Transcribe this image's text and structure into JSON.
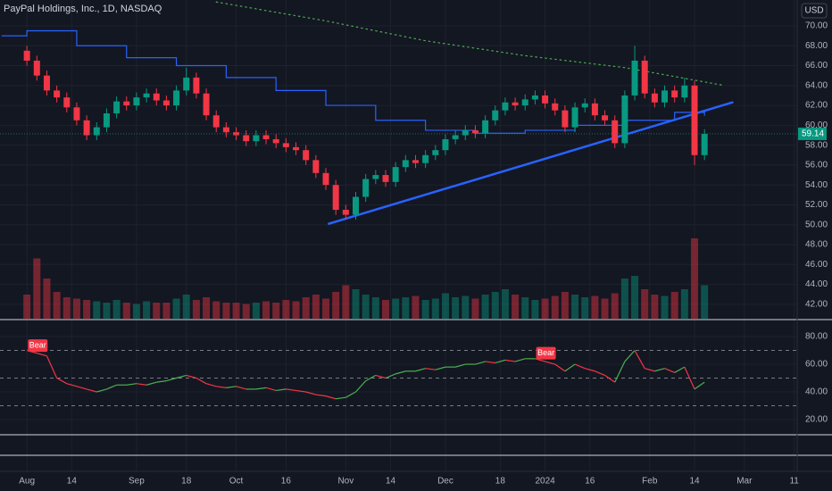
{
  "chart_data": {
    "type": "candlestick",
    "title": "PayPal Holdings, Inc., 1D, NASDAQ",
    "currency": "USD",
    "up_color": "#089981",
    "down_color": "#f23645",
    "grid": true,
    "x": [
      0,
      2,
      4,
      6,
      8,
      10,
      12,
      14,
      16,
      18,
      20,
      22,
      24,
      26,
      28,
      30,
      32,
      34,
      36,
      38,
      40,
      42,
      44,
      46,
      48,
      50,
      52,
      54,
      56,
      58,
      60,
      62,
      64,
      66,
      68,
      70,
      72,
      74,
      76,
      78,
      80,
      82,
      84,
      86,
      88,
      90,
      92,
      94,
      96,
      98,
      100,
      102,
      104,
      106,
      108,
      110,
      112,
      114,
      116,
      118,
      120,
      122,
      124,
      126,
      128,
      130,
      132,
      134,
      136
    ],
    "open": [
      67.5,
      66.5,
      65.0,
      63.5,
      62.8,
      61.8,
      60.5,
      59.0,
      59.8,
      61.2,
      62.4,
      62.0,
      62.8,
      63.2,
      62.5,
      62.0,
      63.5,
      64.8,
      63.2,
      61.0,
      59.8,
      59.3,
      59.0,
      58.4,
      59.0,
      58.6,
      58.2,
      57.8,
      57.5,
      56.5,
      55.2,
      54.0,
      51.5,
      51.0,
      52.8,
      54.6,
      55.0,
      54.3,
      55.8,
      56.5,
      56.2,
      57.0,
      57.5,
      58.6,
      59.0,
      59.5,
      59.2,
      60.5,
      61.5,
      62.3,
      62.0,
      62.6,
      63.0,
      62.2,
      61.5,
      59.8,
      61.8,
      62.2,
      61.0,
      60.5,
      58.2,
      63.0,
      66.5,
      63.2,
      62.3,
      63.5,
      62.8,
      64.0,
      57.0
    ],
    "high": [
      68.0,
      67.0,
      65.5,
      64.0,
      63.3,
      62.3,
      61.0,
      60.3,
      61.7,
      62.9,
      62.9,
      63.3,
      63.7,
      63.7,
      63.0,
      64.0,
      65.8,
      65.3,
      63.7,
      61.5,
      60.3,
      59.8,
      59.5,
      59.5,
      59.5,
      59.1,
      58.7,
      58.3,
      58.0,
      57.0,
      55.7,
      54.5,
      52.0,
      53.3,
      55.1,
      55.5,
      55.5,
      56.3,
      57.0,
      57.0,
      57.5,
      58.0,
      59.1,
      59.5,
      60.0,
      60.0,
      61.0,
      62.0,
      62.8,
      62.8,
      63.1,
      63.5,
      63.5,
      62.7,
      62.0,
      62.3,
      62.7,
      62.7,
      61.5,
      61.0,
      63.5,
      68.0,
      67.0,
      63.7,
      64.0,
      64.0,
      64.8,
      64.5,
      59.6
    ],
    "low": [
      66.0,
      64.5,
      63.0,
      62.3,
      61.3,
      60.0,
      58.5,
      58.5,
      59.3,
      60.7,
      61.5,
      61.5,
      62.3,
      62.0,
      61.5,
      61.5,
      63.0,
      62.7,
      60.5,
      59.3,
      58.8,
      58.5,
      57.9,
      57.9,
      58.1,
      57.7,
      57.3,
      57.0,
      56.0,
      54.7,
      53.5,
      51.0,
      50.5,
      50.5,
      52.3,
      54.1,
      53.8,
      53.8,
      55.3,
      55.7,
      55.7,
      56.5,
      57.0,
      58.1,
      58.5,
      58.7,
      58.7,
      60.0,
      61.0,
      61.5,
      61.5,
      62.1,
      61.7,
      61.0,
      59.3,
      59.3,
      61.3,
      60.5,
      60.0,
      57.7,
      57.7,
      62.5,
      62.7,
      61.8,
      61.8,
      62.3,
      62.3,
      56.0,
      56.5
    ],
    "close": [
      66.5,
      65.0,
      63.5,
      62.8,
      61.8,
      60.5,
      59.0,
      59.8,
      61.2,
      62.4,
      62.0,
      62.8,
      63.2,
      62.5,
      62.0,
      63.5,
      64.8,
      63.2,
      61.0,
      59.8,
      59.3,
      59.0,
      58.4,
      59.0,
      58.6,
      58.2,
      57.8,
      57.5,
      56.5,
      55.2,
      54.0,
      51.5,
      51.0,
      52.8,
      54.6,
      55.0,
      54.3,
      55.8,
      56.5,
      56.2,
      57.0,
      57.5,
      58.6,
      59.0,
      59.5,
      59.2,
      60.5,
      61.5,
      62.3,
      62.0,
      62.6,
      63.0,
      62.2,
      61.5,
      59.8,
      61.8,
      62.2,
      61.0,
      60.5,
      58.2,
      63.0,
      66.5,
      63.2,
      62.3,
      63.5,
      62.8,
      64.0,
      57.0,
      59.14
    ],
    "volume": [
      18,
      45,
      30,
      20,
      16,
      15,
      14,
      13,
      12,
      14,
      12,
      11,
      13,
      12,
      12,
      15,
      18,
      14,
      16,
      13,
      12,
      12,
      11,
      12,
      13,
      12,
      14,
      13,
      16,
      18,
      15,
      20,
      25,
      22,
      18,
      16,
      14,
      15,
      16,
      17,
      14,
      15,
      19,
      16,
      17,
      15,
      18,
      20,
      22,
      18,
      16,
      14,
      15,
      17,
      20,
      18,
      16,
      17,
      15,
      19,
      30,
      32,
      22,
      18,
      17,
      20,
      22,
      60,
      25
    ],
    "xlim": [
      -5.4,
      154.6
    ],
    "ylim": [
      40.55,
      72.6
    ],
    "yticks": [
      {
        "value": 42,
        "label": "42.00"
      },
      {
        "value": 44,
        "label": "44.00"
      },
      {
        "value": 46,
        "label": "46.00"
      },
      {
        "value": 48,
        "label": "48.00"
      },
      {
        "value": 50,
        "label": "50.00"
      },
      {
        "value": 52,
        "label": "52.00"
      },
      {
        "value": 54,
        "label": "54.00"
      },
      {
        "value": 56,
        "label": "56.00"
      },
      {
        "value": 58,
        "label": "58.00"
      },
      {
        "value": 60,
        "label": "60.00"
      },
      {
        "value": 62,
        "label": "62.00"
      },
      {
        "value": 64,
        "label": "64.00"
      },
      {
        "value": 66,
        "label": "66.00"
      },
      {
        "value": 68,
        "label": "68.00"
      },
      {
        "value": 70,
        "label": "70.00"
      }
    ],
    "xticks": [
      {
        "value": 0,
        "label": "Aug"
      },
      {
        "value": 9,
        "label": "14"
      },
      {
        "value": 22,
        "label": "Sep"
      },
      {
        "value": 32,
        "label": "18"
      },
      {
        "value": 42,
        "label": "Oct"
      },
      {
        "value": 52,
        "label": "16"
      },
      {
        "value": 64,
        "label": "Nov"
      },
      {
        "value": 73,
        "label": "14"
      },
      {
        "value": 84,
        "label": "Dec"
      },
      {
        "value": 95,
        "label": "18"
      },
      {
        "value": 104,
        "label": "2024"
      },
      {
        "value": 113,
        "label": "16"
      },
      {
        "value": 125,
        "label": "Feb"
      },
      {
        "value": 134,
        "label": "14"
      },
      {
        "value": 144,
        "label": "Mar"
      },
      {
        "value": 154,
        "label": "11"
      }
    ],
    "lines": [
      {
        "color": "#2962ff",
        "style": "step",
        "x": [
          -5,
          0,
          10,
          20,
          30,
          40,
          50,
          60,
          70,
          80,
          90,
          100,
          110,
          120,
          130,
          136
        ],
        "values": [
          69,
          69.5,
          68,
          66.8,
          66,
          64.8,
          63.5,
          62,
          60.5,
          59.5,
          59.2,
          59.5,
          60,
          60.5,
          61.3,
          61
        ]
      },
      {
        "color": "#4caf50",
        "style": "dotted",
        "x": [
          38,
          60,
          80,
          100,
          120,
          140
        ],
        "values": [
          72.4,
          70.5,
          68.5,
          67,
          65.8,
          64.0
        ]
      },
      {
        "color": "#2962ff",
        "style": "trend",
        "x": [
          60.6,
          141.6
        ],
        "values": [
          50.1,
          62.3
        ]
      }
    ],
    "oscillator": {
      "values": [
        70,
        68,
        66,
        50,
        46,
        44,
        42,
        40,
        42,
        45,
        45,
        46,
        45,
        47,
        48,
        50,
        52,
        50,
        46,
        44,
        43,
        44,
        42,
        42,
        43,
        41,
        42,
        41,
        40,
        38,
        37,
        35,
        36,
        40,
        48,
        52,
        50,
        53,
        55,
        55,
        57,
        56,
        58,
        58,
        60,
        60,
        62,
        61,
        63,
        62,
        64,
        64,
        62,
        60,
        55,
        60,
        57,
        55,
        52,
        47,
        62,
        70,
        57,
        55,
        57,
        54,
        58,
        42,
        47
      ],
      "ylim": [
        9.0,
        92.3
      ],
      "yticks": [
        {
          "value": 20,
          "label": "20.00"
        },
        {
          "value": 40,
          "label": "40.00"
        },
        {
          "value": 60,
          "label": "60.00"
        },
        {
          "value": 80,
          "label": "80.00"
        }
      ],
      "levels": [
        70,
        50,
        30
      ],
      "annotations": [
        {
          "text": "Bear",
          "x": 2,
          "value": 73.5
        },
        {
          "text": "Bear",
          "x": 104,
          "value": 68
        }
      ]
    }
  }
}
